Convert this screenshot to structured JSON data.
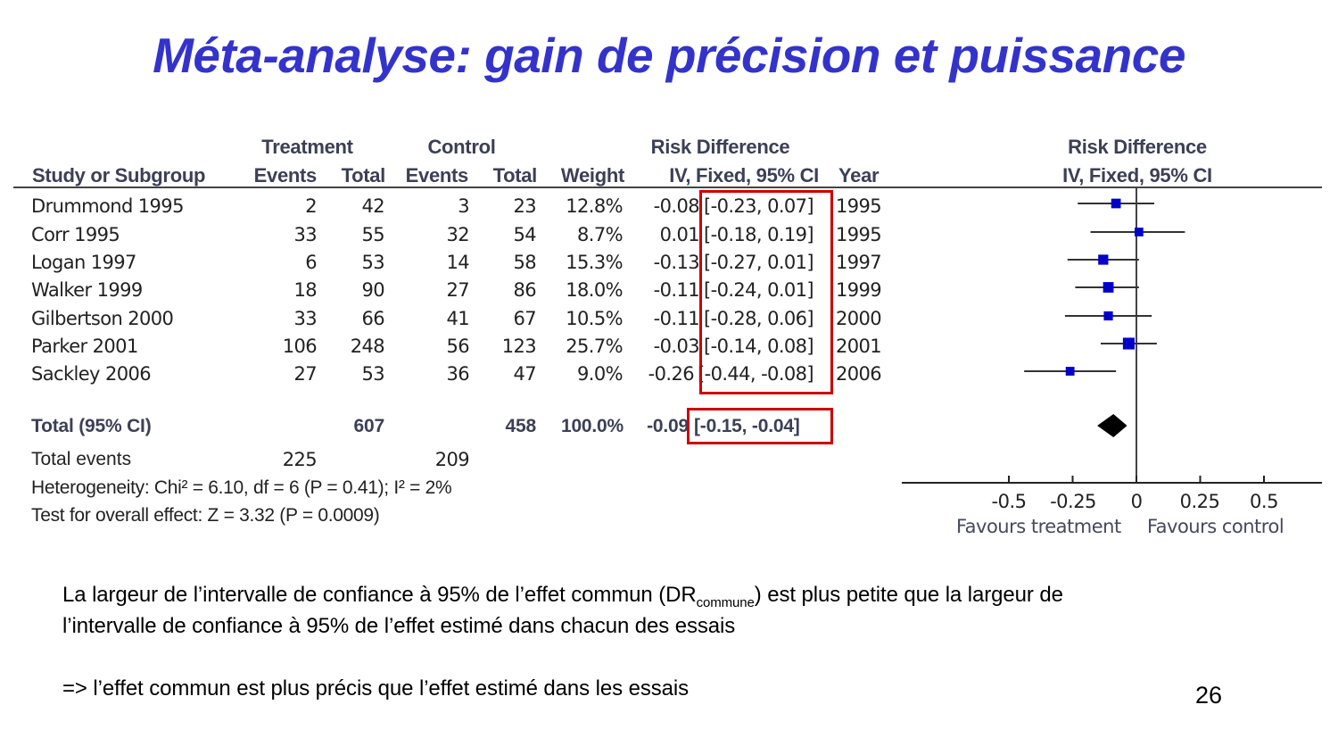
{
  "slide": {
    "title": "Méta-analyse: gain de précision et puissance",
    "page_number": "26",
    "paragraph1_line1_pre": "La largeur de l’intervalle de confiance à 95% de l’effet commun (DR",
    "paragraph1_line1_sub": "commune",
    "paragraph1_line1_post": ") est plus petite que la largeur de",
    "paragraph1_line2": "l’intervalle de confiance à 95% de l’effet estimé dans chacun des essais",
    "paragraph2": "=> l’effet commun est plus précis que l’effet estimé dans les essais"
  },
  "table": {
    "group_headers": {
      "treatment": "Treatment",
      "control": "Control",
      "risk_difference": "Risk Difference",
      "plot_risk_difference": "Risk Difference"
    },
    "columns": {
      "study": "Study or Subgroup",
      "t_events": "Events",
      "t_total": "Total",
      "c_events": "Events",
      "c_total": "Total",
      "weight": "Weight",
      "rd": "IV, Fixed, 95% CI",
      "year": "Year",
      "plot": "IV, Fixed, 95% CI"
    },
    "rows": [
      {
        "study": "Drummond 1995",
        "t_events": "2",
        "t_total": "42",
        "c_events": "3",
        "c_total": "23",
        "weight": "12.8%",
        "rd": "-0.08",
        "ci": "[-0.23, 0.07]",
        "year": "1995"
      },
      {
        "study": "Corr 1995",
        "t_events": "33",
        "t_total": "55",
        "c_events": "32",
        "c_total": "54",
        "weight": "8.7%",
        "rd": "0.01",
        "ci": "[-0.18, 0.19]",
        "year": "1995"
      },
      {
        "study": "Logan 1997",
        "t_events": "6",
        "t_total": "53",
        "c_events": "14",
        "c_total": "58",
        "weight": "15.3%",
        "rd": "-0.13",
        "ci": "[-0.27, 0.01]",
        "year": "1997"
      },
      {
        "study": "Walker 1999",
        "t_events": "18",
        "t_total": "90",
        "c_events": "27",
        "c_total": "86",
        "weight": "18.0%",
        "rd": "-0.11",
        "ci": "[-0.24, 0.01]",
        "year": "1999"
      },
      {
        "study": "Gilbertson 2000",
        "t_events": "33",
        "t_total": "66",
        "c_events": "41",
        "c_total": "67",
        "weight": "10.5%",
        "rd": "-0.11",
        "ci": "[-0.28, 0.06]",
        "year": "2000"
      },
      {
        "study": "Parker 2001",
        "t_events": "106",
        "t_total": "248",
        "c_events": "56",
        "c_total": "123",
        "weight": "25.7%",
        "rd": "-0.03",
        "ci": "[-0.14, 0.08]",
        "year": "2001"
      },
      {
        "study": "Sackley 2006",
        "t_events": "27",
        "t_total": "53",
        "c_events": "36",
        "c_total": "47",
        "weight": "9.0%",
        "rd": "-0.26",
        "ci": "[-0.44, -0.08]",
        "year": "2006"
      }
    ],
    "total": {
      "label": "Total (95% CI)",
      "t_total": "607",
      "c_total": "458",
      "weight": "100.0%",
      "rd": "-0.09",
      "ci": "[-0.15, -0.04]"
    },
    "total_events": {
      "label": "Total events",
      "t_events": "225",
      "c_events": "209"
    },
    "heterogeneity": "Heterogeneity: Chi² = 6.10, df = 6 (P = 0.41); I² = 2%",
    "overall_effect": "Test for overall effect: Z = 3.32 (P = 0.0009)"
  },
  "axis": {
    "ticks": [
      "-0.5",
      "-0.25",
      "0",
      "0.25",
      "0.5"
    ],
    "favours_left": "Favours treatment",
    "favours_right": "Favours control"
  },
  "colors": {
    "title": "#3333cc",
    "header_text": "#3b4056",
    "highlight_box": "#cc0000",
    "study_marker": "#0000cc",
    "summary_diamond": "#000000"
  },
  "chart_data": {
    "type": "forest",
    "title": "Risk Difference IV, Fixed, 95% CI",
    "xlabel": "Favours treatment | Favours control",
    "xlim": [
      -0.75,
      0.75
    ],
    "xticks": [
      -0.5,
      -0.25,
      0,
      0.25,
      0.5
    ],
    "categories": [
      "Drummond 1995",
      "Corr 1995",
      "Logan 1997",
      "Walker 1999",
      "Gilbertson 2000",
      "Parker 2001",
      "Sackley 2006",
      "Total (95% CI)"
    ],
    "estimates": [
      -0.08,
      0.01,
      -0.13,
      -0.11,
      -0.11,
      -0.03,
      -0.26,
      -0.09
    ],
    "ci_lower": [
      -0.23,
      -0.18,
      -0.27,
      -0.24,
      -0.28,
      -0.14,
      -0.44,
      -0.15
    ],
    "ci_upper": [
      0.07,
      0.19,
      0.01,
      0.01,
      0.06,
      0.08,
      -0.08,
      -0.04
    ],
    "weights": [
      12.8,
      8.7,
      15.3,
      18.0,
      10.5,
      25.7,
      9.0,
      100.0
    ]
  }
}
